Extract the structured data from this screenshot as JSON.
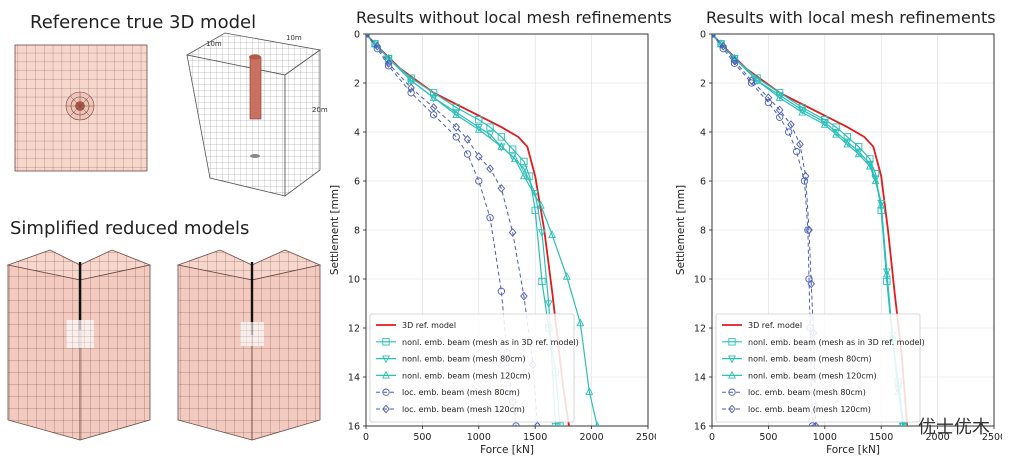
{
  "left": {
    "title_reference": "Reference true 3D model",
    "title_simplified": "Simplified reduced models",
    "dims": [
      "10m",
      "10m",
      "20m"
    ]
  },
  "watermark": "优士优木",
  "colors": {
    "ref": "#e41a1c",
    "nonl": "#2bbfb8",
    "loc": "#4a5db8",
    "mesh_fill": "#f7d6cc",
    "mesh_line": "#6b4a44"
  },
  "chart_data": [
    {
      "type": "line",
      "title": "Results without local mesh refinements",
      "xlabel": "Force [kN]",
      "ylabel": "Settlement [mm]",
      "xlim": [
        0,
        2500
      ],
      "ylim": [
        0,
        16
      ],
      "y_inverted": true,
      "grid": true,
      "legend_position": "bottom-left",
      "xticks": [
        0,
        500,
        1000,
        1500,
        2000,
        2500
      ],
      "yticks": [
        0,
        2,
        4,
        6,
        8,
        10,
        12,
        14,
        16
      ],
      "series": [
        {
          "name": "3D ref. model",
          "style": "solid-red",
          "marker": "none",
          "x": [
            0,
            100,
            300,
            600,
            900,
            1200,
            1350,
            1430,
            1500,
            1580,
            1650,
            1700,
            1750,
            1800
          ],
          "y": [
            0,
            0.5,
            1.4,
            2.4,
            3.1,
            3.8,
            4.2,
            4.6,
            5.8,
            8.0,
            10.5,
            12.5,
            14.5,
            16
          ]
        },
        {
          "name": "nonl. emb. beam (mesh as in 3D ref. model)",
          "style": "solid-teal",
          "marker": "square",
          "x": [
            0,
            80,
            200,
            400,
            600,
            800,
            1000,
            1100,
            1200,
            1300,
            1400,
            1450,
            1500,
            1560,
            1620,
            1680,
            1720
          ],
          "y": [
            0,
            0.4,
            1.0,
            1.8,
            2.4,
            3.0,
            3.5,
            3.8,
            4.2,
            4.7,
            5.2,
            5.8,
            7.2,
            10.1,
            12.0,
            13.8,
            16
          ]
        },
        {
          "name": "nonl. emb. beam (mesh 80cm)",
          "style": "solid-teal",
          "marker": "triangle-down",
          "x": [
            0,
            80,
            200,
            400,
            600,
            800,
            1000,
            1100,
            1200,
            1300,
            1400,
            1500,
            1560,
            1620,
            1680
          ],
          "y": [
            0,
            0.4,
            1.0,
            1.9,
            2.6,
            3.2,
            3.8,
            4.1,
            4.6,
            5.0,
            5.5,
            6.5,
            8.1,
            11.0,
            16
          ]
        },
        {
          "name": "nonl. emb. beam (mesh 120cm)",
          "style": "solid-teal",
          "marker": "triangle-up",
          "x": [
            0,
            80,
            200,
            400,
            600,
            800,
            1000,
            1200,
            1320,
            1400,
            1550,
            1650,
            1780,
            1900,
            1980,
            2050
          ],
          "y": [
            0,
            0.4,
            1.0,
            1.9,
            2.6,
            3.3,
            3.9,
            4.6,
            5.1,
            5.8,
            7.0,
            8.2,
            9.9,
            11.8,
            14.6,
            16
          ]
        },
        {
          "name": "loc. emb. beam (mesh 80cm)",
          "style": "dashed-blue",
          "marker": "circle",
          "x": [
            0,
            100,
            200,
            400,
            600,
            800,
            900,
            1000,
            1100,
            1200,
            1250,
            1300,
            1330
          ],
          "y": [
            0,
            0.6,
            1.3,
            2.4,
            3.3,
            4.2,
            4.9,
            6.0,
            7.5,
            10.5,
            13.0,
            15.0,
            16
          ]
        },
        {
          "name": "loc. emb. beam (mesh 120cm)",
          "style": "dashed-blue",
          "marker": "diamond",
          "x": [
            0,
            100,
            200,
            400,
            600,
            800,
            900,
            1000,
            1100,
            1200,
            1300,
            1400,
            1480,
            1520
          ],
          "y": [
            0,
            0.5,
            1.2,
            2.2,
            3.0,
            3.8,
            4.3,
            5.0,
            5.5,
            6.3,
            8.1,
            10.7,
            13.5,
            16
          ]
        }
      ]
    },
    {
      "type": "line",
      "title": "Results with local mesh refinements",
      "xlabel": "Force [kN]",
      "ylabel": "Settlement [mm]",
      "xlim": [
        0,
        2500
      ],
      "ylim": [
        0,
        16
      ],
      "y_inverted": true,
      "grid": true,
      "legend_position": "bottom-left",
      "xticks": [
        0,
        500,
        1000,
        1500,
        2000,
        2500
      ],
      "yticks": [
        0,
        2,
        4,
        6,
        8,
        10,
        12,
        14,
        16
      ],
      "series": [
        {
          "name": "3D ref. model",
          "style": "solid-red",
          "marker": "none",
          "x": [
            0,
            100,
            300,
            600,
            900,
            1200,
            1350,
            1430,
            1500,
            1560,
            1620,
            1680,
            1730
          ],
          "y": [
            0,
            0.5,
            1.4,
            2.4,
            3.1,
            3.8,
            4.2,
            4.6,
            5.8,
            8.0,
            10.6,
            13.0,
            16
          ]
        },
        {
          "name": "nonl. emb. beam (mesh as in 3D ref. model)",
          "style": "solid-teal",
          "marker": "square",
          "x": [
            0,
            80,
            200,
            400,
            600,
            800,
            1000,
            1100,
            1200,
            1300,
            1400,
            1450,
            1500,
            1550,
            1600,
            1650,
            1700
          ],
          "y": [
            0,
            0.4,
            1.0,
            1.8,
            2.4,
            3.0,
            3.5,
            3.8,
            4.2,
            4.6,
            5.1,
            5.7,
            7.2,
            10.1,
            12.5,
            14.2,
            16
          ]
        },
        {
          "name": "nonl. emb. beam (mesh 80cm)",
          "style": "solid-teal",
          "marker": "triangle-down",
          "x": [
            0,
            80,
            200,
            400,
            600,
            800,
            1000,
            1100,
            1200,
            1300,
            1400,
            1450,
            1500,
            1550,
            1600,
            1650,
            1690
          ],
          "y": [
            0,
            0.4,
            1.0,
            1.9,
            2.5,
            3.1,
            3.6,
            4.0,
            4.4,
            4.8,
            5.3,
            5.9,
            6.9,
            9.7,
            12.3,
            14.5,
            16
          ]
        },
        {
          "name": "nonl. emb. beam (mesh 120cm)",
          "style": "solid-teal",
          "marker": "triangle-up",
          "x": [
            0,
            80,
            200,
            400,
            600,
            800,
            1000,
            1100,
            1200,
            1300,
            1400,
            1450,
            1500,
            1550,
            1600,
            1650,
            1700
          ],
          "y": [
            0,
            0.4,
            1.0,
            1.9,
            2.6,
            3.2,
            3.7,
            4.1,
            4.5,
            4.9,
            5.4,
            6.0,
            7.0,
            9.8,
            12.4,
            14.6,
            16
          ]
        },
        {
          "name": "loc. emb. beam (mesh 80cm)",
          "style": "dashed-blue",
          "marker": "circle",
          "x": [
            0,
            100,
            200,
            350,
            500,
            600,
            680,
            750,
            820,
            850,
            860,
            870,
            880,
            890
          ],
          "y": [
            0,
            0.6,
            1.2,
            2.0,
            2.8,
            3.4,
            4.0,
            4.8,
            6.0,
            8.0,
            10.0,
            12.0,
            14.0,
            16
          ]
        },
        {
          "name": "loc. emb. beam (mesh 120cm)",
          "style": "dashed-blue",
          "marker": "diamond",
          "x": [
            0,
            100,
            200,
            350,
            500,
            600,
            700,
            780,
            830,
            860,
            880,
            900,
            910,
            920
          ],
          "y": [
            0,
            0.5,
            1.1,
            1.9,
            2.6,
            3.1,
            3.7,
            4.5,
            5.8,
            8.0,
            10.2,
            12.2,
            14.0,
            16
          ]
        }
      ]
    }
  ]
}
